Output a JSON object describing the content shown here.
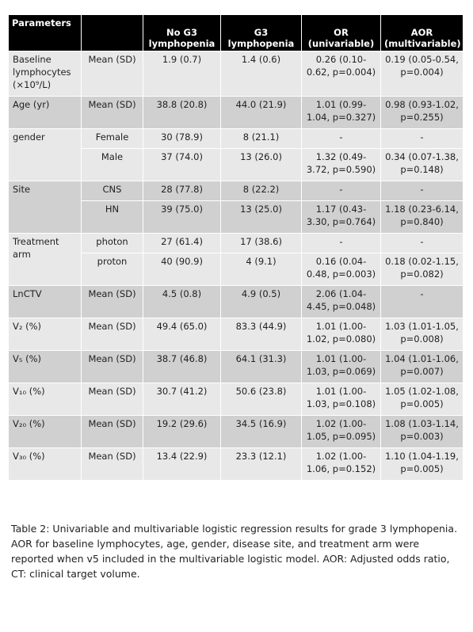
{
  "table": {
    "header": [
      "Parameters",
      "No G3 lymphopenia",
      "G3 lymphopenia",
      "OR (univariable)",
      "AOR (multivariable)"
    ],
    "rows": [
      {
        "parameter": "Baseline lymphocytes (×10⁹/L)",
        "cells": [
          "Mean (SD)",
          "1.9 (0.7)",
          "1.4 (0.6)",
          "0.26 (0.10-0.62, p=0.004)",
          "0.19 (0.05-0.54, p=0.004)"
        ]
      },
      {
        "parameter": "Age (yr)",
        "cells": [
          "Mean (SD)",
          "38.8 (20.8)",
          "44.0 (21.9)",
          "1.01 (0.99-1.04, p=0.327)",
          "0.98 (0.93-1.02, p=0.255)"
        ]
      },
      {
        "parameter": "gender",
        "cells": [
          "Female",
          "30 (78.9)",
          "8 (21.1)",
          "-",
          "-"
        ]
      },
      {
        "cells": [
          "Male",
          "37 (74.0)",
          "13 (26.0)",
          "1.32 (0.49-3.72, p=0.590)",
          "0.34 (0.07-1.38, p=0.148)"
        ]
      },
      {
        "parameter": "Site",
        "cells": [
          "CNS",
          "28 (77.8)",
          "8 (22.2)",
          "-",
          "-"
        ]
      },
      {
        "cells": [
          "HN",
          "39 (75.0)",
          "13 (25.0)",
          "1.17 (0.43-3.30, p=0.764)",
          "1.18 (0.23-6.14, p=0.840)"
        ]
      },
      {
        "parameter": "Treatment arm",
        "cells": [
          "photon",
          "27 (61.4)",
          "17 (38.6)",
          "-",
          "-"
        ]
      },
      {
        "cells": [
          "proton",
          "40 (90.9)",
          "4 (9.1)",
          "0.16 (0.04-0.48, p=0.003)",
          "0.18 (0.02-1.15, p=0.082)"
        ]
      },
      {
        "parameter": "LnCTV",
        "cells": [
          "Mean (SD)",
          "4.5 (0.8)",
          "4.9 (0.5)",
          "2.06 (1.04-4.45, p=0.048)",
          "-"
        ]
      },
      {
        "parameter": "V₂ (%)",
        "cells": [
          "Mean (SD)",
          "49.4 (65.0)",
          "83.3 (44.9)",
          "1.01 (1.00-1.02, p=0.080)",
          "1.03 (1.01-1.05, p=0.008)"
        ]
      },
      {
        "parameter": "V₅ (%)",
        "cells": [
          "Mean (SD)",
          "38.7 (46.8)",
          "64.1 (31.3)",
          "1.01 (1.00-1.03, p=0.069)",
          "1.04 (1.01-1.06, p=0.007)"
        ]
      },
      {
        "parameter": "V₁₀ (%)",
        "cells": [
          "Mean (SD)",
          "30.7 (41.2)",
          "50.6 (23.8)",
          "1.01 (1.00-1.03, p=0.108)",
          "1.05 (1.02-1.08, p=0.005)"
        ]
      },
      {
        "parameter": "V₂₀ (%)",
        "cells": [
          "Mean (SD)",
          "19.2 (29.6)",
          "34.5 (16.9)",
          "1.02 (1.00-1.05, p=0.095)",
          "1.08 (1.03-1.14, p=0.003)"
        ]
      },
      {
        "parameter": "V₃₀ (%)",
        "cells": [
          "Mean (SD)",
          "13.4 (22.9)",
          "23.3 (12.1)",
          "1.02 (1.00-1.06, p=0.152)",
          "1.10 (1.04-1.19, p=0.005)"
        ]
      }
    ]
  },
  "caption": "Table 2: Univariable and multivariable logistic regression results for grade 3 lymphopenia. AOR for baseline lymphocytes, age, gender, disease site, and treatment arm were reported when v5 included in the multivariable logistic model. AOR: Adjusted odds ratio, CT: clinical target volume."
}
